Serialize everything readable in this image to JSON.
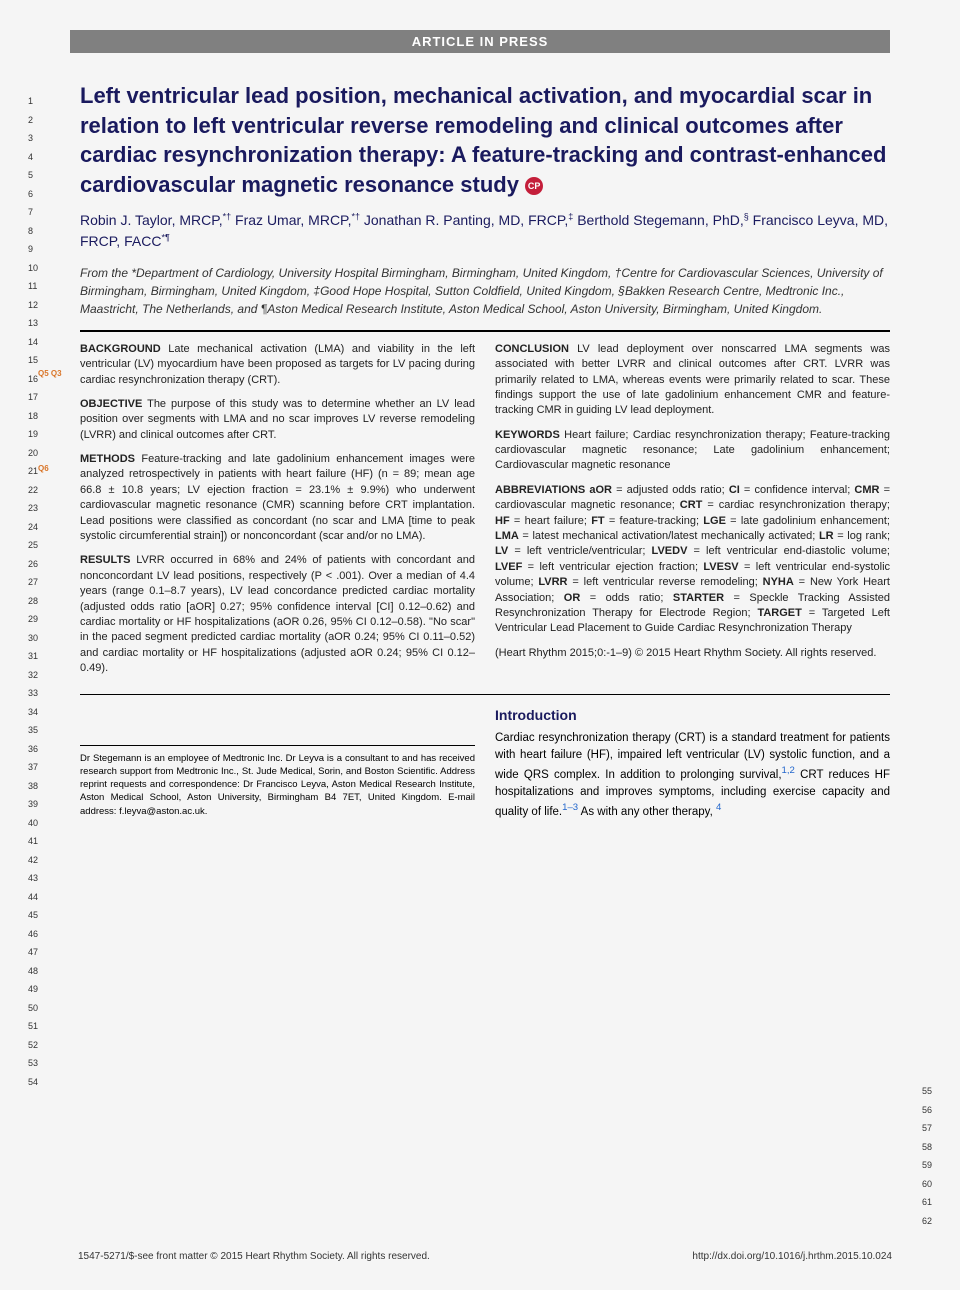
{
  "banner": "ARTICLE IN PRESS",
  "line_numbers_left": [
    "1",
    "2",
    "3",
    "4",
    "5",
    "6",
    "7",
    "8",
    "9",
    "10",
    "11",
    "12",
    "13",
    "14",
    "15",
    "16",
    "17",
    "18",
    "19",
    "20",
    "21",
    "22",
    "23",
    "24",
    "25",
    "26",
    "27",
    "28",
    "29",
    "30",
    "31",
    "32",
    "33",
    "34",
    "35",
    "36",
    "37",
    "38",
    "39",
    "40",
    "41",
    "42",
    "43",
    "44",
    "45",
    "46",
    "47",
    "48",
    "49",
    "50",
    "51",
    "52",
    "53",
    "54"
  ],
  "line_numbers_right": [
    "55",
    "56",
    "57",
    "58",
    "59",
    "60",
    "61",
    "62"
  ],
  "query_marks": {
    "q5q3": "Q5 Q3",
    "q6": "Q6"
  },
  "title": "Left ventricular lead position, mechanical activation, and myocardial scar in relation to left ventricular reverse remodeling and clinical outcomes after cardiac resynchronization therapy: A feature-tracking and contrast-enhanced cardiovascular magnetic resonance study",
  "cp_badge": "CP",
  "authors_html": "Robin J. Taylor, MRCP,*† Fraz Umar, MRCP,*† Jonathan R. Panting, MD, FRCP,‡ Berthold Stegemann, PhD,§ Francisco Leyva, MD, FRCP, FACC*¶",
  "affiliations": "From the *Department of Cardiology, University Hospital Birmingham, Birmingham, United Kingdom, †Centre for Cardiovascular Sciences, University of Birmingham, Birmingham, United Kingdom, ‡Good Hope Hospital, Sutton Coldfield, United Kingdom, §Bakken Research Centre, Medtronic Inc., Maastricht, The Netherlands, and ¶Aston Medical Research Institute, Aston Medical School, Aston University, Birmingham, United Kingdom.",
  "abstract": {
    "background": {
      "label": "BACKGROUND",
      "text": "Late mechanical activation (LMA) and viability in the left ventricular (LV) myocardium have been proposed as targets for LV pacing during cardiac resynchronization therapy (CRT)."
    },
    "objective": {
      "label": "OBJECTIVE",
      "text": "The purpose of this study was to determine whether an LV lead position over segments with LMA and no scar improves LV reverse remodeling (LVRR) and clinical outcomes after CRT."
    },
    "methods": {
      "label": "METHODS",
      "text": "Feature-tracking and late gadolinium enhancement images were analyzed retrospectively in patients with heart failure (HF) (n = 89; mean age 66.8 ± 10.8 years; LV ejection fraction = 23.1% ± 9.9%) who underwent cardiovascular magnetic resonance (CMR) scanning before CRT implantation. Lead positions were classified as concordant (no scar and LMA [time to peak systolic circumferential strain]) or nonconcordant (scar and/or no LMA)."
    },
    "results": {
      "label": "RESULTS",
      "text": "LVRR occurred in 68% and 24% of patients with concordant and nonconcordant LV lead positions, respectively (P < .001). Over a median of 4.4 years (range 0.1–8.7 years), LV lead concordance predicted cardiac mortality (adjusted odds ratio [aOR] 0.27; 95% confidence interval [CI] 0.12–0.62) and cardiac mortality or HF hospitalizations (aOR 0.26, 95% CI 0.12–0.58). \"No scar\" in the paced segment predicted cardiac mortality (aOR 0.24; 95% CI 0.11–0.52) and cardiac mortality or HF hospitalizations (adjusted aOR 0.24; 95% CI 0.12–0.49)."
    },
    "conclusion": {
      "label": "CONCLUSION",
      "text": "LV lead deployment over nonscarred LMA segments was associated with better LVRR and clinical outcomes after CRT. LVRR was primarily related to LMA, whereas events were primarily related to scar. These findings support the use of late gadolinium enhancement CMR and feature-tracking CMR in guiding LV lead deployment."
    },
    "keywords": {
      "label": "KEYWORDS",
      "text": "Heart failure; Cardiac resynchronization therapy; Feature-tracking cardiovascular magnetic resonance; Late gadolinium enhancement; Cardiovascular magnetic resonance"
    },
    "abbreviations": {
      "label": "ABBREVIATIONS",
      "text": "aOR = adjusted odds ratio; CI = confidence interval; CMR = cardiovascular magnetic resonance; CRT = cardiac resynchronization therapy; HF = heart failure; FT = feature-tracking; LGE = late gadolinium enhancement; LMA = latest mechanical activation/latest mechanically activated; LR = log rank; LV = left ventricle/ventricular; LVEDV = left ventricular end-diastolic volume; LVEF = left ventricular ejection fraction; LVESV = left ventricular end-systolic volume; LVRR = left ventricular reverse remodeling; NYHA = New York Heart Association; OR = odds ratio; STARTER = Speckle Tracking Assisted Resynchronization Therapy for Electrode Region; TARGET = Targeted Left Ventricular Lead Placement to Guide Cardiac Resynchronization Therapy"
    },
    "citation": "(Heart Rhythm 2015;0:-1–9) © 2015 Heart Rhythm Society. All rights reserved."
  },
  "footnote": "Dr Stegemann is an employee of Medtronic Inc. Dr Leyva is a consultant to and has received research support from Medtronic Inc., St. Jude Medical, Sorin, and Boston Scientific. Address reprint requests and correspondence: Dr Francisco Leyva, Aston Medical Research Institute, Aston Medical School, Aston University, Birmingham B4 7ET, United Kingdom. E-mail address: f.leyva@aston.ac.uk.",
  "introduction": {
    "heading": "Introduction",
    "text_part1": "Cardiac resynchronization therapy (CRT) is a standard treatment for patients with heart failure (HF), impaired left ventricular (LV) systolic function, and a wide QRS complex. In addition to prolonging survival,",
    "ref1": "1,2",
    "text_part2": " CRT reduces HF hospitalizations and improves symptoms, including exercise capacity and quality of life.",
    "ref2": "1–3",
    "text_part3": " As with any other therapy, ",
    "ref3": "4"
  },
  "footer": {
    "left": "1547-5271/$-see front matter © 2015 Heart Rhythm Society. All rights reserved.",
    "right": "http://dx.doi.org/10.1016/j.hrthm.2015.10.024"
  },
  "colors": {
    "title_color": "#1a1a5e",
    "banner_bg": "#808080",
    "badge_bg": "#c41e3a",
    "link_color": "#2266cc",
    "query_color": "#d97528"
  }
}
